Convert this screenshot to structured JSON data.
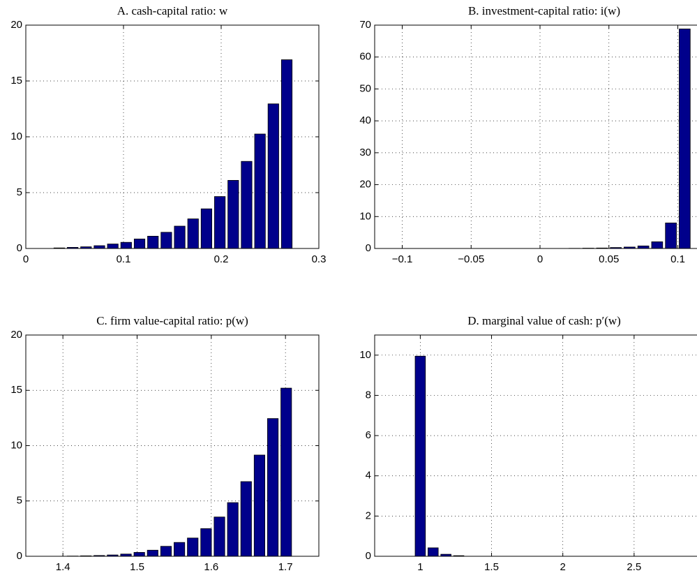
{
  "chart_data": [
    {
      "type": "histogram",
      "title": "A.  cash-capital ratio: w",
      "bins": [
        0,
        0.0137,
        0.0274,
        0.0411,
        0.0548,
        0.0685,
        0.0822,
        0.0959,
        0.1096,
        0.1233,
        0.137,
        0.1507,
        0.1644,
        0.1781,
        0.1918,
        0.2055,
        0.2192,
        0.2329,
        0.2466,
        0.2603,
        0.274
      ],
      "values": [
        0,
        0,
        0.05,
        0.1,
        0.15,
        0.25,
        0.4,
        0.55,
        0.85,
        1.1,
        1.45,
        2.0,
        2.65,
        3.55,
        4.65,
        6.1,
        7.8,
        10.25,
        12.95,
        16.9
      ],
      "color": "#00008b",
      "xlim": [
        0,
        0.3
      ],
      "ylim": [
        0,
        20
      ],
      "xticks": [
        0,
        0.1,
        0.2,
        0.3
      ],
      "yticks": [
        0,
        5,
        10,
        15,
        20
      ],
      "grid": true
    },
    {
      "type": "histogram",
      "title": "B.  investment-capital ratio: i(w)",
      "bins": [
        0.02,
        0.03,
        0.04,
        0.05,
        0.06,
        0.07,
        0.08,
        0.09,
        0.1,
        0.11
      ],
      "values": [
        0.05,
        0.1,
        0.15,
        0.3,
        0.45,
        0.8,
        2.1,
        8.0,
        68.8
      ],
      "color": "#00008b",
      "xlim": [
        -0.12,
        0.12
      ],
      "ylim": [
        0,
        70
      ],
      "xticks": [
        {
          "value": -0.1,
          "label": "−0.1"
        },
        {
          "value": -0.05,
          "label": "−0.05"
        },
        0,
        0.05,
        0.1
      ],
      "yticks": [
        0,
        10,
        20,
        30,
        40,
        50,
        60,
        70
      ],
      "grid": true
    },
    {
      "type": "histogram",
      "title": "C.  firm value-capital ratio: p(w)",
      "bins": [
        1.35,
        1.368,
        1.386,
        1.404,
        1.422,
        1.44,
        1.458,
        1.476,
        1.494,
        1.512,
        1.53,
        1.548,
        1.566,
        1.584,
        1.602,
        1.62,
        1.638,
        1.656,
        1.674,
        1.692,
        1.71
      ],
      "values": [
        0,
        0,
        0,
        0.02,
        0.04,
        0.07,
        0.12,
        0.2,
        0.35,
        0.55,
        0.9,
        1.25,
        1.65,
        2.5,
        3.55,
        4.85,
        6.75,
        9.15,
        12.45,
        15.2
      ],
      "color": "#00008b",
      "xlim": [
        1.35,
        1.745
      ],
      "ylim": [
        0,
        20
      ],
      "xticks": [
        1.4,
        1.5,
        1.6,
        1.7
      ],
      "yticks": [
        0,
        5,
        10,
        15,
        20
      ],
      "grid": true
    },
    {
      "type": "histogram",
      "title": "D.  marginal value of cash: p′(w)",
      "bins": [
        0.955,
        1.045,
        1.135,
        1.225,
        1.315
      ],
      "values": [
        9.95,
        0.42,
        0.1,
        0.03
      ],
      "color": "#00008b",
      "xlim": [
        0.68,
        3.0
      ],
      "ylim": [
        0,
        11
      ],
      "xticks": [
        1,
        1.5,
        2,
        2.5
      ],
      "yticks": [
        0,
        2,
        4,
        6,
        8,
        10
      ],
      "grid": true
    }
  ]
}
